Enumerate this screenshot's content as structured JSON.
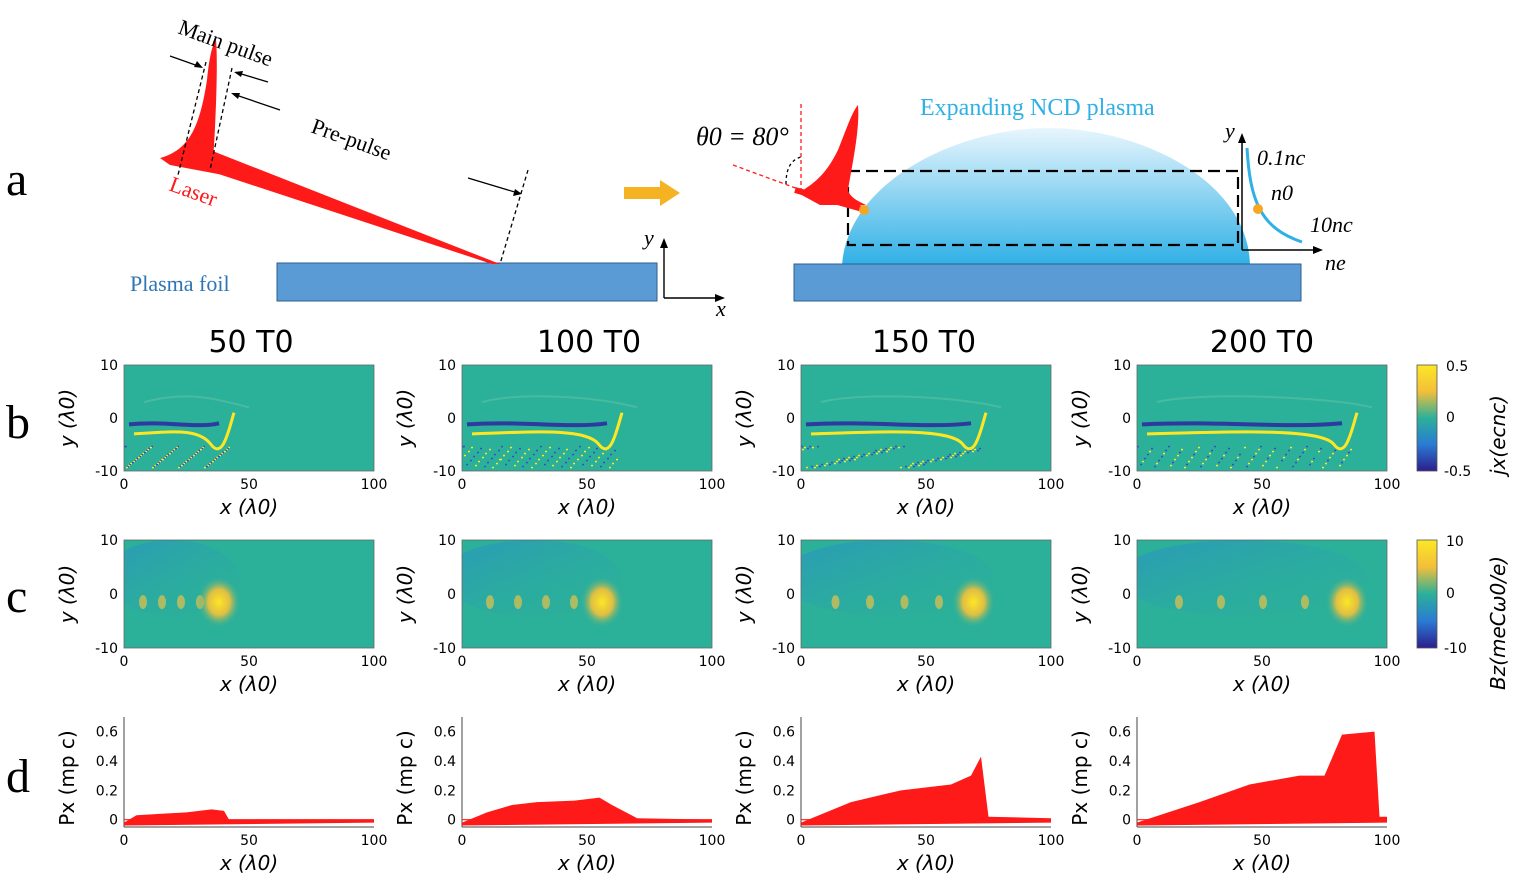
{
  "panel_letters": [
    "a",
    "b",
    "c",
    "d"
  ],
  "schematic": {
    "main_pulse": "Main pulse",
    "pre_pulse": "Pre-pulse",
    "laser": "Laser",
    "plasma_foil": "Plasma foil",
    "axis_y": "y",
    "axis_x": "x",
    "expanding": "Expanding NCD plasma",
    "theta_label": "θ0 = 80°",
    "density_y": "y",
    "density_ne": "ne",
    "low_density": "0.1nc",
    "n0": "n0",
    "high_density": "10nc"
  },
  "times": [
    "50 T0",
    "100 T0",
    "150 T0",
    "200 T0"
  ],
  "colorbars": {
    "jx": {
      "label": "jx(ecnc)",
      "max": "0.5",
      "mid": "0",
      "min": "-0.5"
    },
    "bz": {
      "label": "Bz(meCω0/e)",
      "max": "10",
      "mid": "0",
      "min": "-10"
    }
  },
  "axes": {
    "x_label": "x (λ0)",
    "y_label": "y (λ0)",
    "px_label": "Px (mp c)",
    "x_ticks": [
      "0",
      "50",
      "100"
    ],
    "y_ticks": [
      "10",
      "0",
      "-10"
    ],
    "px_ticks": [
      "0.6",
      "0.4",
      "0.2",
      "0"
    ]
  },
  "chart_data": [
    {
      "type": "heatmap",
      "quantity": "jx",
      "time": "50 T0",
      "xlim": [
        0,
        100
      ],
      "ylim": [
        -10,
        10
      ],
      "front_x": 42
    },
    {
      "type": "heatmap",
      "quantity": "jx",
      "time": "100 T0",
      "xlim": [
        0,
        100
      ],
      "ylim": [
        -10,
        10
      ],
      "front_x": 62
    },
    {
      "type": "heatmap",
      "quantity": "jx",
      "time": "150 T0",
      "xlim": [
        0,
        100
      ],
      "ylim": [
        -10,
        10
      ],
      "front_x": 72
    },
    {
      "type": "heatmap",
      "quantity": "jx",
      "time": "200 T0",
      "xlim": [
        0,
        100
      ],
      "ylim": [
        -10,
        10
      ],
      "front_x": 86
    },
    {
      "type": "heatmap",
      "quantity": "Bz",
      "time": "50 T0",
      "xlim": [
        0,
        100
      ],
      "ylim": [
        -10,
        10
      ],
      "peak_x": 38
    },
    {
      "type": "heatmap",
      "quantity": "Bz",
      "time": "100 T0",
      "xlim": [
        0,
        100
      ],
      "ylim": [
        -10,
        10
      ],
      "peak_x": 56
    },
    {
      "type": "heatmap",
      "quantity": "Bz",
      "time": "150 T0",
      "xlim": [
        0,
        100
      ],
      "ylim": [
        -10,
        10
      ],
      "peak_x": 69
    },
    {
      "type": "heatmap",
      "quantity": "Bz",
      "time": "200 T0",
      "xlim": [
        0,
        100
      ],
      "ylim": [
        -10,
        10
      ],
      "peak_x": 84
    },
    {
      "type": "scatter",
      "quantity": "Px",
      "time": "50 T0",
      "xlim": [
        0,
        100
      ],
      "ylim": [
        -0.05,
        0.7
      ],
      "envelope": [
        [
          0,
          -0.02
        ],
        [
          5,
          0.03
        ],
        [
          15,
          0.04
        ],
        [
          25,
          0.05
        ],
        [
          35,
          0.07
        ],
        [
          40,
          0.06
        ],
        [
          42,
          0.0
        ],
        [
          100,
          0.0
        ]
      ]
    },
    {
      "type": "scatter",
      "quantity": "Px",
      "time": "100 T0",
      "xlim": [
        0,
        100
      ],
      "ylim": [
        -0.05,
        0.7
      ],
      "envelope": [
        [
          0,
          -0.02
        ],
        [
          10,
          0.05
        ],
        [
          20,
          0.1
        ],
        [
          30,
          0.12
        ],
        [
          45,
          0.13
        ],
        [
          55,
          0.15
        ],
        [
          60,
          0.1
        ],
        [
          70,
          0.01
        ],
        [
          100,
          0.0
        ]
      ]
    },
    {
      "type": "scatter",
      "quantity": "Px",
      "time": "150 T0",
      "xlim": [
        0,
        100
      ],
      "ylim": [
        -0.05,
        0.7
      ],
      "envelope": [
        [
          0,
          -0.02
        ],
        [
          20,
          0.12
        ],
        [
          40,
          0.2
        ],
        [
          60,
          0.24
        ],
        [
          68,
          0.3
        ],
        [
          72,
          0.43
        ],
        [
          75,
          0.02
        ],
        [
          100,
          0.01
        ]
      ]
    },
    {
      "type": "scatter",
      "quantity": "Px",
      "time": "200 T0",
      "xlim": [
        0,
        100
      ],
      "ylim": [
        -0.05,
        0.7
      ],
      "envelope": [
        [
          0,
          -0.02
        ],
        [
          25,
          0.12
        ],
        [
          45,
          0.24
        ],
        [
          65,
          0.3
        ],
        [
          75,
          0.3
        ],
        [
          82,
          0.58
        ],
        [
          95,
          0.6
        ],
        [
          97,
          0.02
        ],
        [
          100,
          0.02
        ]
      ]
    }
  ]
}
